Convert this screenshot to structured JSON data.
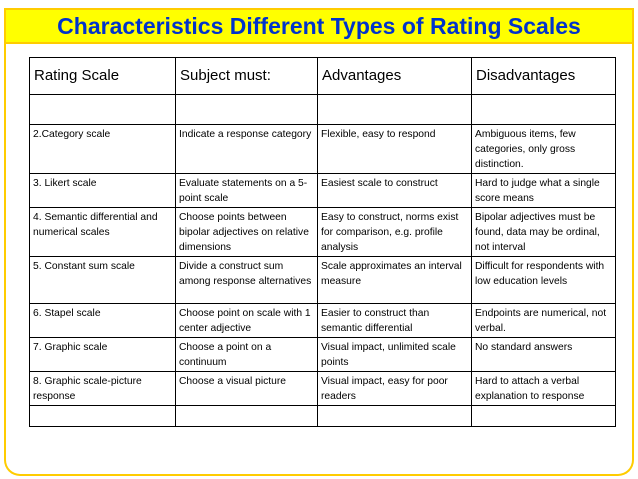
{
  "title": "Characteristics Different Types of Rating Scales",
  "table": {
    "headers": [
      "Rating Scale",
      "Subject must:",
      "Advantages",
      "Disadvantages"
    ],
    "rows": [
      [
        "",
        "",
        "",
        ""
      ],
      [
        "2.Category scale",
        "Indicate a response category",
        "Flexible, easy to respond",
        "Ambiguous items, few categories, only gross distinction."
      ],
      [
        "3. Likert scale",
        "Evaluate statements on a 5-point scale",
        "Easiest scale to construct",
        "Hard to judge what a single score means"
      ],
      [
        "4. Semantic differential and numerical scales",
        "Choose points between bipolar adjectives on relative dimensions",
        "Easy to construct, norms exist for comparison, e.g. profile analysis",
        "Bipolar adjectives must be found, data may be ordinal, not interval"
      ],
      [
        "5. Constant sum scale",
        "Divide a construct sum among response alternatives",
        "Scale approximates an interval measure",
        "Difficult for respondents with low education levels"
      ],
      [
        "6. Stapel scale",
        "Choose point on  scale with 1 center adjective",
        "Easier to construct than semantic differential",
        "Endpoints are numerical, not verbal."
      ],
      [
        "7. Graphic scale",
        "Choose a point on a continuum",
        "Visual impact, unlimited scale points",
        "No standard answers"
      ],
      [
        "8. Graphic scale-picture response",
        "Choose a visual picture",
        "Visual impact, easy for poor readers",
        "Hard to attach a verbal explanation to response"
      ],
      [
        "",
        "",
        "",
        ""
      ]
    ]
  },
  "colors": {
    "title_text": "#0033cc",
    "title_background": "#ffff00",
    "frame_border": "#ffcc00"
  }
}
